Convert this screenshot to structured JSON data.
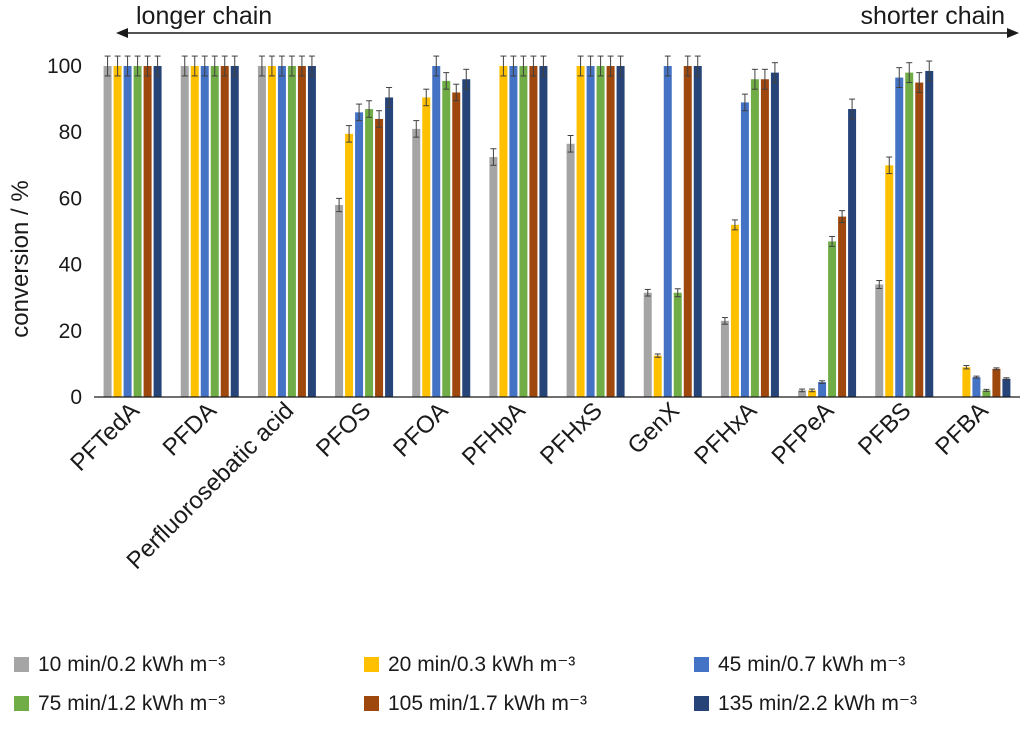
{
  "chart_data": {
    "type": "bar",
    "ylabel": "conversion / %",
    "ylim": [
      0,
      100
    ],
    "yticks": [
      0,
      20,
      40,
      60,
      80,
      100
    ],
    "grid": false,
    "legend_position": "bottom",
    "annotations": {
      "left_label": "longer chain",
      "right_label": "shorter chain"
    },
    "categories": [
      "PFTedA",
      "PFDA",
      "Perfluorosebatic acid",
      "PFOS",
      "PFOA",
      "PFHpA",
      "PFHxS",
      "GenX",
      "PFHxA",
      "PFPeA",
      "PFBS",
      "PFBA"
    ],
    "series": [
      {
        "name": "10 min/0.2 kWh m⁻³",
        "color": "#a5a5a5",
        "values": [
          100,
          100,
          100,
          58,
          81,
          72.5,
          76.5,
          31.5,
          23,
          2,
          34,
          0
        ],
        "errors": [
          3,
          3,
          3,
          2,
          2.5,
          2.5,
          2.5,
          1,
          1,
          0.4,
          1.2,
          0
        ]
      },
      {
        "name": "20 min/0.3 kWh m⁻³",
        "color": "#ffc000",
        "values": [
          100,
          100,
          100,
          79.5,
          90.5,
          100,
          100,
          12.5,
          52,
          2,
          70,
          9
        ],
        "errors": [
          3,
          3,
          3,
          2.5,
          2.5,
          3,
          3,
          0.5,
          1.5,
          0.4,
          2.5,
          0.5
        ]
      },
      {
        "name": "45 min/0.7 kWh m⁻³",
        "color": "#4472c4",
        "values": [
          100,
          100,
          100,
          86,
          100,
          100,
          100,
          100,
          89,
          4.5,
          96.5,
          6
        ],
        "errors": [
          3,
          3,
          3,
          2.5,
          3,
          3,
          3,
          3,
          2.5,
          0.4,
          3,
          0.3
        ]
      },
      {
        "name": "75 min/1.2 kWh m⁻³",
        "color": "#70ad47",
        "values": [
          100,
          100,
          100,
          87,
          95.5,
          100,
          100,
          31.5,
          96,
          47,
          98,
          2
        ],
        "errors": [
          3,
          3,
          3,
          2.5,
          2.5,
          3,
          3,
          1.2,
          3,
          1.5,
          3,
          0.3
        ]
      },
      {
        "name": "105 min/1.7 kWh m⁻³",
        "color": "#9e480e",
        "values": [
          100,
          100,
          100,
          84,
          92,
          100,
          100,
          100,
          96,
          54.5,
          95,
          8.5
        ],
        "errors": [
          3,
          3,
          3,
          2.5,
          2.5,
          3,
          3,
          3,
          3,
          1.8,
          3,
          0.3
        ]
      },
      {
        "name": "135 min/2.2 kWh m⁻³",
        "color": "#264478",
        "values": [
          100,
          100,
          100,
          90.5,
          96,
          100,
          100,
          100,
          98,
          87,
          98.5,
          5.5
        ],
        "errors": [
          3,
          3,
          3,
          3,
          3,
          3,
          3,
          3,
          3,
          3,
          3,
          0.3
        ]
      }
    ]
  }
}
